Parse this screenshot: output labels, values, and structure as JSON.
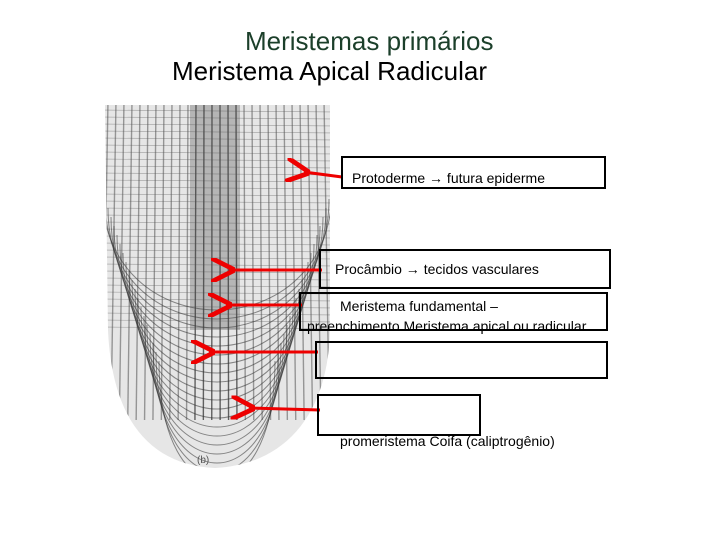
{
  "header": {
    "subtitle": "Meristemas primários",
    "title": "Meristema Apical Radicular"
  },
  "figure": {
    "label": "(b)"
  },
  "labels": [
    {
      "text": "Protoderme → futura epiderme"
    },
    {
      "text": "Procâmbio → tecidos vasculares"
    },
    {
      "text": "Meristema fundamental – preenchimento  Meristema apical ou radicular"
    },
    {
      "text": "promeristema Coifa  (caliptrogênio)"
    }
  ]
}
